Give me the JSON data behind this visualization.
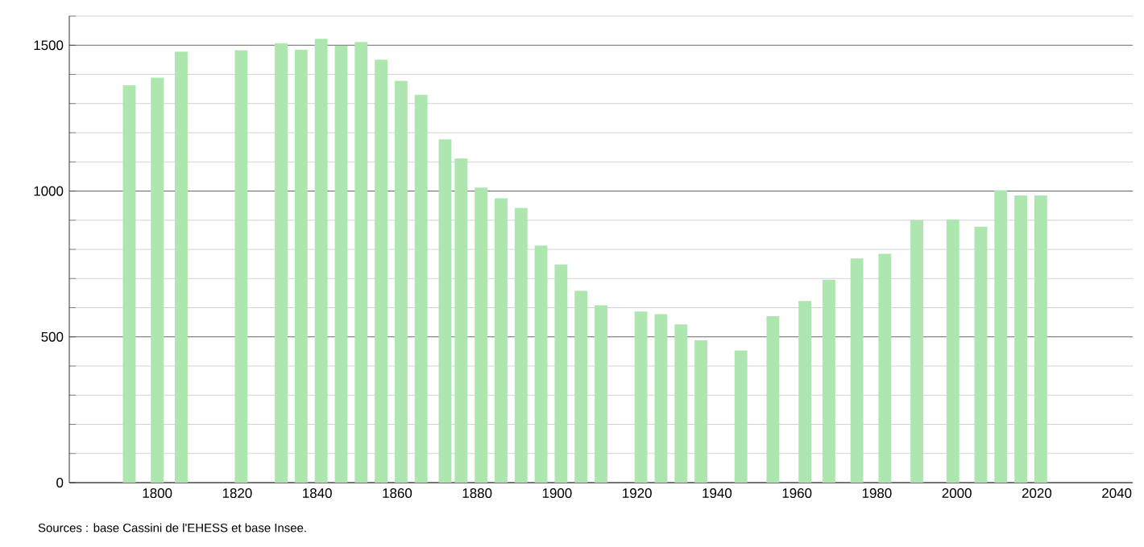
{
  "chart_data": {
    "type": "bar",
    "color": "#aee6b0",
    "x": [
      1793,
      1800,
      1806,
      1821,
      1831,
      1836,
      1841,
      1846,
      1851,
      1856,
      1861,
      1866,
      1872,
      1876,
      1881,
      1886,
      1891,
      1896,
      1901,
      1906,
      1911,
      1921,
      1926,
      1931,
      1936,
      1946,
      1954,
      1962,
      1968,
      1975,
      1982,
      1990,
      1999,
      2006,
      2011,
      2016,
      2021
    ],
    "values": [
      1363,
      1389,
      1478,
      1483,
      1507,
      1485,
      1522,
      1498,
      1511,
      1450,
      1378,
      1330,
      1177,
      1112,
      1012,
      975,
      942,
      813,
      748,
      658,
      608,
      587,
      578,
      543,
      488,
      453,
      571,
      623,
      696,
      769,
      785,
      900,
      903,
      878,
      1003,
      985,
      985
    ],
    "xlim": [
      1778,
      2044
    ],
    "ylim": [
      0,
      1600
    ],
    "xticks": [
      1800,
      1820,
      1840,
      1860,
      1880,
      1900,
      1920,
      1940,
      1960,
      1980,
      2000,
      2020,
      2040
    ],
    "yticks": [
      0,
      {
        "value": 100,
        "label": null
      },
      {
        "value": 200,
        "label": null
      },
      {
        "value": 300,
        "label": null
      },
      {
        "value": 400,
        "label": null
      },
      500,
      {
        "value": 600,
        "label": null
      },
      {
        "value": 700,
        "label": null
      },
      {
        "value": 800,
        "label": null
      },
      {
        "value": 900,
        "label": null
      },
      1000,
      {
        "value": 1100,
        "label": null
      },
      {
        "value": 1200,
        "label": null
      },
      {
        "value": 1300,
        "label": null
      },
      {
        "value": 1400,
        "label": null
      },
      1500,
      {
        "value": 1600,
        "label": null
      }
    ],
    "grid": "y",
    "annotations": [
      "Sources : base Cassini de l'EHESS et base Insee."
    ]
  }
}
